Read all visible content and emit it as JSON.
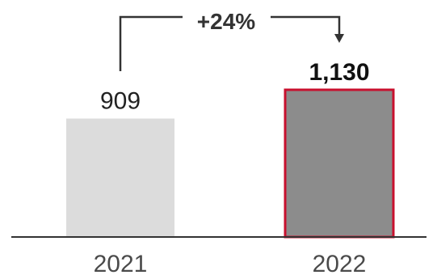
{
  "chart_data": {
    "type": "bar",
    "categories": [
      "2021",
      "2022"
    ],
    "values": [
      909,
      1130
    ],
    "value_labels": [
      "909",
      "1,130"
    ],
    "highlight_index": 1,
    "change_label": "+24%",
    "title": "",
    "xlabel": "",
    "ylabel": "",
    "ylim": [
      0,
      1130
    ],
    "grid": false,
    "legend": "none",
    "colors": {
      "bar_2021": "#dcdcdc",
      "bar_2022": "#8c8c8c",
      "highlight_border": "#c8102e",
      "baseline": "#333333",
      "arrow": "#333333"
    }
  }
}
